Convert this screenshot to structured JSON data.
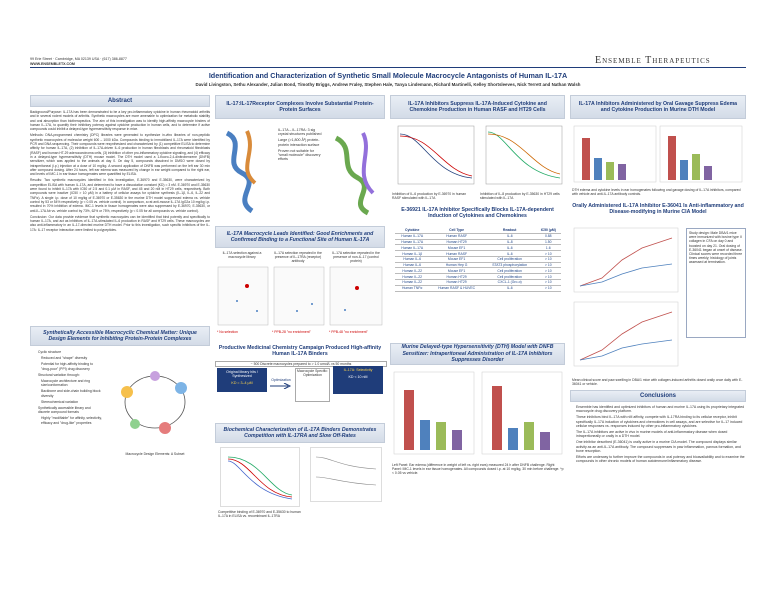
{
  "header": {
    "address": "99 Erie Street · Cambridge, MA 02139 USA · (617) 386-8877",
    "website": "WWW.ENSEMBLETX.COM",
    "logo": "Ensemble Therapeutics",
    "title": "Identification and Characterization of Synthetic Small Molecule Macrocycle Antagonists of Human IL-17A",
    "authors": "David Livingston, Sethu Alexander, Julian Bond, Timothy Briggs, Andrew Fraley, Stephen Hale, Tanya Lindemann, Richard Martinelli, Kelley Shortsleeves, Nick Terrett and Nathan Walsh"
  },
  "abstract": {
    "heading": "Abstract",
    "background": "Background/Purpose: IL-17A has been demonstrated to be a key pro-inflammatory cytokine in human rheumatoid arthritis and in several rodent models of arthritis. Synthetic macrocycles are more amenable to optimization for metabolic stability and oral absorption than biotherapeutics. The aim of this investigation was to identify high-affinity macrocycle binders of human IL-17A, to quantify their inhibitory potency against cytokine production in human cells, and to determine if active compounds could inhibit a delayed-type hypersensitivity response in mice.",
    "methods": "Methods: DNA-programmed chemistry (DPC) libraries were generated to synthesize in-vitro libraries of non-peptidic synthetic macrocycles of molecular weight 600 – 1000 kDa. Compounds binding to immobilized IL-17A were identified by PCR and DNA sequencing. Their compounds were resynthesized and characterized by (1) competitive ELISA to determine affinity for human IL-17A, (2) inhibition of IL-17A-driven IL-6 production in human fibroblasts and rheumatoid fibroblasts (RASF) and human HT-29 adenocarcinoma cells, (3) inhibition of other pro-inflammatory cytokine signaling, and (4) efficacy in a delayed-type hypersensitivity (DTH) mouse model. The DTH model used a 1-fluoro-2,4-dinitrobenzene (DNFB) sensitizer, which was applied to the animals at day 0. On day 5, compounds dissolved in DMSO were dosed by intraperitoneal (i.p.) injection at a dose of 10 mg/kg. A second application of DNFB was performed on the left ear 30 min after compound dosing. After 24 hours, left ear edema was measured by change in ear weight compared to the right ear, and levels of IMC-1 in ear tissue homogenates were quantified by ELISA.",
    "results": "Results: Two synthetic macrocycles identified in this investigation, E-36970 and E-35630, were characterized by competition ELISA with human IL-17A, and determined to have a dissociation constant (KD) = 3 nM. E-36970 and E-35630 were found to inhibit IL-17A with IC50 of 2.5 and 0.1 µM in RASF, and 45 and 20 nM in HT29 cells, respectively. Both compounds were inactive (IC50 > 10 µM) in a battery of cellular assays for cytokine synthesis (IL-1β, IL-6, IL-22 and TNFα). A single i.p. dose of 10 mg/kg of E-36970 or E-35630 in the murine DTH model suppressed edema vs. vehicle control by 53 or 54% respectively (p < 0.05 vs. vehicle control). In comparison, a rat anti-mouse IL-17A IgG2a 10 mg/kg i.p. resulted in 70% inhibition of edema. IMC-1 levels in tissue homogenates were also suppressed by E-36970, E-35630, or anti-IL-17A Ab vs. vehicle control by 73%, 62% or 75%, respectively (p < 0.05 for all compounds vs. vehicle control).",
    "conclusion": "Conclusion: Our data provide evidence that synthetic macrocycles can be identified that bind potently and specifically to human IL-17A, and act as inhibitors of IL-17A-stimulated IL-6 production in RASF and HT29 cells. These macrocycles are also anti-inflammatory in an IL-17-directed murine DTH model. Prior to this investigation, such specific inhibitors of the IL-17A: IL-17 receptor interaction were limited to polypeptides."
  },
  "macrocycle": {
    "heading": "Synthetically Accessible Macrocyclic Chemical Matter: Unique Design Elements for Inhibiting Protein-Protein Complexes",
    "bullets": [
      "Cyclic structure",
      "Reduced and \"shape\" diversity",
      "Potential for high-affinity binding to \"drug-poor\" (PPI) drug discovery",
      "Structural variation through:",
      "Macrocycle architecture and ring size/conformation",
      "Backbone and side-chain building block diversity",
      "Stereochemical variation",
      "Synthetically accessible library and discrete compound formats",
      "Highly \"modifiable\" for affinity, selectivity, efficacy and \"drug-like\" properties"
    ],
    "figure_label": "Macrocycle Design Elements: A Subset"
  },
  "receptor": {
    "heading": "IL-17:IL-17Receptor Complexes Involve Substantial Protein-Protein Surfaces",
    "points": [
      "IL-17A – IL-17RA: 3 sig crystal structures published",
      "Large (>1,800 Å²) protein-protein interaction surface",
      "Proven not suitable for \"small molecule\" discovery efforts"
    ]
  },
  "leads": {
    "heading": "IL-17A Macrocycle Leads Identified: Good Enrichments and Confirmed Binding to a Functional Site of Human IL-17A",
    "labels": [
      "IL-17A selection against a macrocycle library",
      "IL-17A selection repeated in the presence of IL-17RA (receptor) antibody",
      "IL-17A selection repeated in the presence of non-IL-17 (control protein)"
    ],
    "footnotes": [
      "* No selection",
      "* PPB-28 \"no enrichment\"",
      "* PPB-48 \"no enrichment\""
    ]
  },
  "medchem": {
    "heading": "Productive Medicinal Chemistry Campaign Produced High-affinity Human IL-17A Binders",
    "subheading": "~ 500 Discrete macrocycles prepared to > 1.0 umol/L vs 50 months",
    "hit": "Original library hits / Synthesized",
    "hit_kd": "KD = 3–4 µM",
    "opt": "Optimization",
    "opt_kd": "KD < 10 nM",
    "lead": "Macrocycle Specific: Optimization",
    "series": "IL-17A: Selectivity"
  },
  "biochem": {
    "heading": "Biochemical Characterization of IL-17A Binders Demonstrates Competition with IL-17RA and Slow Off-Rates",
    "caption": "Competitive binding of E-36970 and E-35630 to human IL-17A in ELISA vs. recombinant IL-17RA"
  },
  "suppress": {
    "heading": "IL-17A Inhibitors Suppress IL-17A-Induced Cytokine and Chemokine Production in Human RASF and HT29 Cells",
    "caption_left": "Inhibition of IL-6 production by E-36970 in human RASF stimulated with IL-17A",
    "caption_right": "Inhibition of IL-8 production by E-35630 in HT29 cells stimulated with IL-17A"
  },
  "specific": {
    "heading": "E-36921 IL-17A Inhibitor Specifically Blocks IL-17A-dependent Induction of Cytokines and Chemokines",
    "columns": [
      "Cytokine",
      "Cell Type",
      "Readout",
      "IC50 (µM)"
    ],
    "rows": [
      [
        "Human IL-17A",
        "Human RASF",
        "IL-6",
        "0.88"
      ],
      [
        "Human IL-17A",
        "Human HT29",
        "IL-8",
        "1.50"
      ],
      [
        "Human IL-17A",
        "Mouse EF1",
        "IL-6",
        "1.6"
      ],
      [
        "Human IL-1β",
        "Human RASF",
        "IL-6",
        "> 10"
      ],
      [
        "Human IL-6",
        "Mouse EF1",
        "Cell proliferation",
        "> 10"
      ],
      [
        "Human IL-6",
        "Human Hep G",
        "STAT3 phosphorylation",
        "> 10"
      ],
      [
        "Human IL-22",
        "Mouse EF1",
        "Cell proliferation",
        "> 10"
      ],
      [
        "Human IL-22",
        "Human HT29",
        "Cell proliferation",
        "> 10"
      ],
      [
        "Human IL-22",
        "Human HT29",
        "CXCL-1 (Gro-α)",
        "> 10"
      ],
      [
        "Human TNFα",
        "Human RASF & HUVEC",
        "IL-6",
        "> 10"
      ]
    ]
  },
  "dth": {
    "heading": "Murine Delayed-type Hypersensitivity (DTH) Model with DNFB Sensitizer: Intraperitoneal Administration of IL-17A Inhibitors Suppresses Disorder",
    "caption": "Left Panel: Ear edema (difference in weight of left vs. right ears) measured 24 h after DNFB challenge. Right Panel: IMC-1 levels in ear tissue homogenates. All compounds dosed i.p. at 10 mg/kg, 30 min before challenge. *p < 0.05 vs vehicle."
  },
  "oral": {
    "heading": "IL-17A Inhibitors Administered by Oral Gavage Suppress Edema and Cytokine Production in Murine DTH Model",
    "caption": "DTH edema and cytokine levels in ear homogenates following oral gavage dosing of IL-17A inhibitors, compared with vehicle and anti-IL-17A antibody controls."
  },
  "cia": {
    "heading": "Orally Administered IL-17A Inhibitor E-36041 Is Anti-inflammatory and Disease-modifying in Murine CIA Model",
    "caption": "Mean clinical score and paw swelling in DBA/1 mice with collagen-induced arthritis dosed orally once daily with E-36041 or vehicle.",
    "side": "Study design: Male DBA/1 mice were immunized with bovine type II collagen in CFA on day 0 and boosted on day 21. Oral dosing of E-36041 began at onset of disease. Clinical scores were recorded three times weekly; histology of joints assessed at termination."
  },
  "conclusions": {
    "heading": "Conclusions",
    "bullets": [
      "Ensemble has identified and optimized inhibitors of human and murine IL-17A using its proprietary integrated macrocycle drug discovery platform.",
      "These inhibitors bind IL-17A with nM affinity, compete with IL-17RA binding to its cellular receptor, inhibit specifically IL-17A induction of cytokines and chemokines in cell assays, and are selective for IL-17 induced cellular responses vs. responses induced by other pro-inflammatory cytokines.",
      "The IL-17A inhibitors are active in vivo in murine models of anti-inflammatory disease when dosed intraperitoneally or orally in a DTH model.",
      "One inhibitor described (E-36041) is orally active in a murine CIA model. The compound displays similar activity as an anti-IL-17A antibody. The compound suppresses in paw inflammation, pannus formation, and bone resorption.",
      "Efforts are underway to further improve the compounds in oral potency and bioavailability and to examine the compounds in other chronic models of human autoimmune/inflammatory disease."
    ]
  }
}
